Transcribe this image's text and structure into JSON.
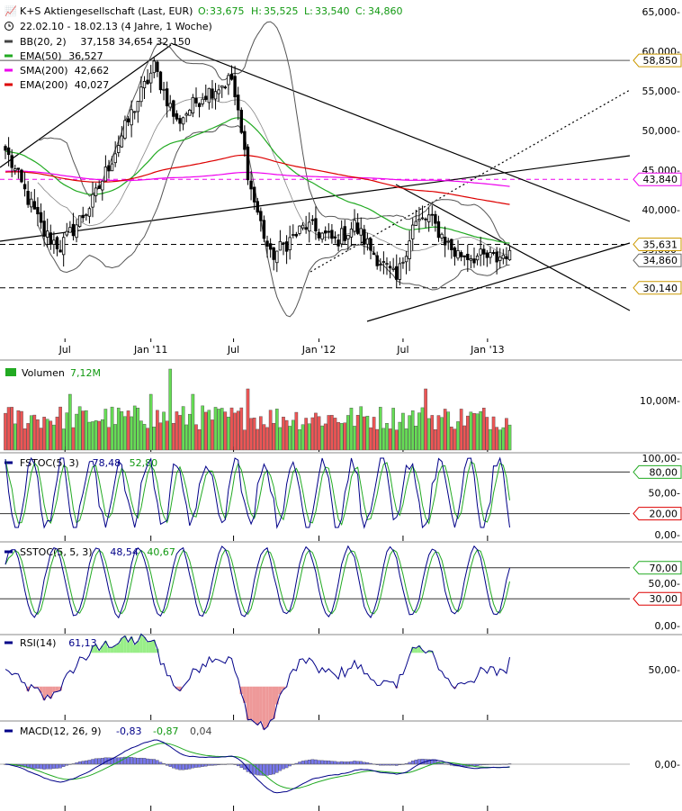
{
  "header": {
    "instrument": "K+S Aktiengesellschaft (Last, EUR)",
    "ohlc": [
      {
        "label": "O:",
        "value": "33,675"
      },
      {
        "label": "H:",
        "value": "35,525"
      },
      {
        "label": "L:",
        "value": "33,540"
      },
      {
        "label": "C:",
        "value": "34,860"
      }
    ],
    "range": "22.02.10 - 18.02.13 (4 Jahre, 1 Woche)",
    "legend": [
      {
        "label": "BB(20, 2)",
        "values": "37,158  34,654  32,150",
        "color": "#444444"
      },
      {
        "label": "EMA(50)",
        "values": "36,527",
        "color": "#22aa22"
      },
      {
        "label": "SMA(200)",
        "values": "42,662",
        "color": "#ee00ee"
      },
      {
        "label": "EMA(200)",
        "values": "40,027",
        "color": "#dd0000"
      }
    ]
  },
  "colors": {
    "up": "#66dd55",
    "down": "#ee5555",
    "indicator_blue": "#000088",
    "indicator_green": "#22aa22"
  },
  "chart_data": [
    {
      "id": "price",
      "type": "candlestick",
      "x_labels": [
        "Jul",
        "Jan '11",
        "Jul",
        "Jan '12",
        "Jul",
        "Jan '13"
      ],
      "y_ticks": [
        "65,000-",
        "60,000-",
        "55,000-",
        "50,000-",
        "45,000-",
        "40,000-",
        "35,000-"
      ],
      "ylim": [
        25,
        66
      ],
      "price_tags": [
        {
          "value": "58,850",
          "color": "#cc9900"
        },
        {
          "value": "43,840",
          "color": "#ee00ee"
        },
        {
          "value": "35,631",
          "color": "#cc9900"
        },
        {
          "value": "34,860",
          "color": "#666666"
        },
        {
          "value": "30,140",
          "color": "#cc9900"
        }
      ],
      "weekly_close_keypoints": [
        {
          "date": "2010-02-22",
          "close": 47.5
        },
        {
          "date": "2010-05-17",
          "close": 37.0
        },
        {
          "date": "2010-06-21",
          "close": 35.3
        },
        {
          "date": "2010-08-30",
          "close": 41.0
        },
        {
          "date": "2010-11-29",
          "close": 53.0
        },
        {
          "date": "2011-01-10",
          "close": 58.0
        },
        {
          "date": "2011-02-28",
          "close": 51.0
        },
        {
          "date": "2011-04-25",
          "close": 54.5
        },
        {
          "date": "2011-06-27",
          "close": 56.5
        },
        {
          "date": "2011-08-08",
          "close": 42.5
        },
        {
          "date": "2011-09-19",
          "close": 34.0
        },
        {
          "date": "2011-12-05",
          "close": 38.0
        },
        {
          "date": "2012-02-06",
          "close": 36.0
        },
        {
          "date": "2012-03-19",
          "close": 38.0
        },
        {
          "date": "2012-04-30",
          "close": 34.5
        },
        {
          "date": "2012-06-18",
          "close": 31.0
        },
        {
          "date": "2012-07-23",
          "close": 38.0
        },
        {
          "date": "2012-08-27",
          "close": 39.0
        },
        {
          "date": "2012-10-22",
          "close": 34.5
        },
        {
          "date": "2012-12-17",
          "close": 34.0
        },
        {
          "date": "2013-01-21",
          "close": 33.8
        },
        {
          "date": "2013-02-18",
          "close": 34.86
        }
      ]
    },
    {
      "id": "volume",
      "type": "bar",
      "title": "Volumen",
      "value": "7,12M",
      "y_ticks": [
        "10,00M-"
      ]
    },
    {
      "id": "fstoc",
      "type": "line",
      "title": "FSTOC(5, 3)",
      "values": [
        "78,48",
        "52,80"
      ],
      "y_ticks": [
        "100,00-",
        "50,00-",
        "0,00-"
      ],
      "tags": [
        {
          "value": "80,00",
          "color": "#22aa22"
        },
        {
          "value": "20,00",
          "color": "#dd0000"
        }
      ]
    },
    {
      "id": "sstoc",
      "type": "line",
      "title": "SSTOC(5, 5, 3)",
      "values": [
        "48,54",
        "40,67"
      ],
      "y_ticks": [
        "50,00-",
        "0,00-"
      ],
      "tags": [
        {
          "value": "70,00",
          "color": "#22aa22"
        },
        {
          "value": "30,00",
          "color": "#dd0000"
        }
      ]
    },
    {
      "id": "rsi",
      "type": "line",
      "title": "RSI(14)",
      "values": [
        "61,13"
      ],
      "y_ticks": [
        "50,00-"
      ]
    },
    {
      "id": "macd",
      "type": "line",
      "title": "MACD(12, 26, 9)",
      "values": [
        "-0,83",
        "-0,87",
        "0,04"
      ],
      "y_ticks": [
        "0,00-"
      ]
    }
  ]
}
